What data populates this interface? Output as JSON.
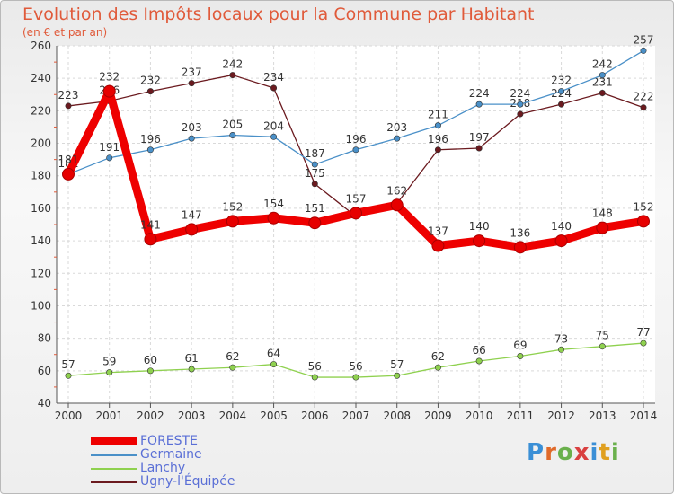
{
  "title": "Evolution des Impôts locaux pour la Commune par Habitant",
  "subtitle": "(en € et par an)",
  "logo": {
    "text": "Proxiti",
    "colors": [
      "#3a8fd6",
      "#e06a2a",
      "#6ab04c",
      "#d94040",
      "#3a8fd6",
      "#e0a020",
      "#6ab04c"
    ]
  },
  "chart_data": {
    "type": "line",
    "x": [
      2000,
      2001,
      2002,
      2003,
      2004,
      2005,
      2006,
      2007,
      2008,
      2009,
      2010,
      2011,
      2012,
      2013,
      2014
    ],
    "ylim": [
      40,
      260
    ],
    "yticks": [
      40,
      60,
      80,
      100,
      120,
      140,
      160,
      180,
      200,
      220,
      240,
      260
    ],
    "grid": true,
    "legend": "bottom-left",
    "series": [
      {
        "name": "Ugny-l'Équipée",
        "color": "#6b1a1f",
        "values": [
          223,
          226,
          232,
          237,
          242,
          234,
          175,
          155,
          163,
          196,
          197,
          218,
          224,
          231,
          222
        ],
        "labels": [
          "223",
          "226",
          "232",
          "237",
          "242",
          "234",
          "175",
          "",
          "",
          "196",
          "197",
          "218",
          "224",
          "231",
          "222"
        ]
      },
      {
        "name": "Germaine",
        "color": "#4a90c8",
        "values": [
          181,
          191,
          196,
          203,
          205,
          204,
          187,
          196,
          203,
          211,
          224,
          224,
          232,
          242,
          257
        ],
        "labels": [
          "181",
          "191",
          "196",
          "203",
          "205",
          "204",
          "187",
          "196",
          "203",
          "211",
          "224",
          "224",
          "232",
          "242",
          "257"
        ]
      },
      {
        "name": "Lanchy",
        "color": "#8fd14f",
        "values": [
          57,
          59,
          60,
          61,
          62,
          64,
          56,
          56,
          57,
          62,
          66,
          69,
          73,
          75,
          77
        ],
        "labels": [
          "57",
          "59",
          "60",
          "61",
          "62",
          "64",
          "56",
          "56",
          "57",
          "62",
          "66",
          "69",
          "73",
          "75",
          "77"
        ]
      },
      {
        "name": "FORESTE",
        "color": "#ee0000",
        "values": [
          181,
          232,
          141,
          147,
          152,
          154,
          151,
          157,
          162,
          137,
          140,
          136,
          140,
          148,
          152
        ],
        "labels": [
          "181",
          "232",
          "141",
          "147",
          "152",
          "154",
          "151",
          "157",
          "162",
          "137",
          "140",
          "136",
          "140",
          "148",
          "152"
        ]
      }
    ]
  },
  "legend_items": [
    {
      "name": "FORESTE",
      "color": "#ee0000",
      "thick": true
    },
    {
      "name": "Germaine",
      "color": "#4a90c8",
      "thick": false
    },
    {
      "name": "Lanchy",
      "color": "#8fd14f",
      "thick": false
    },
    {
      "name": "Ugny-l'Équipée",
      "color": "#6b1a1f",
      "thick": false
    }
  ]
}
